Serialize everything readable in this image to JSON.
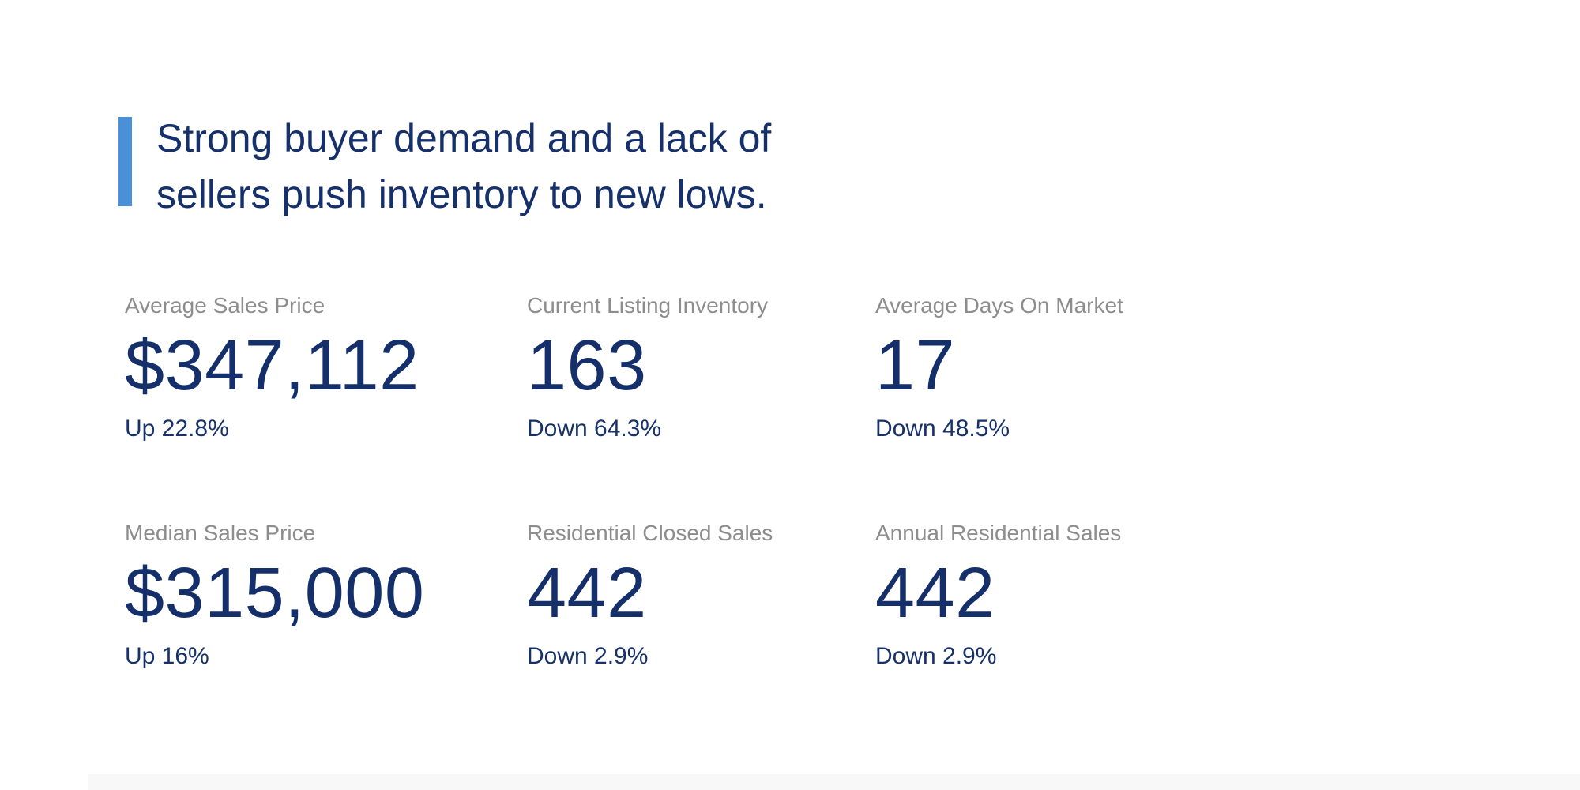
{
  "colors": {
    "accent_bar": "#4a90d9",
    "headline_navy": "#16306b",
    "value_navy": "#142f6a",
    "label_gray": "#8d8d8d",
    "background": "#ffffff"
  },
  "headline": {
    "line1": "Strong buyer demand and a lack of",
    "line2": "sellers push inventory to new lows."
  },
  "stats": [
    {
      "label": "Average Sales Price",
      "value": "$347,112",
      "change": "Up 22.8%"
    },
    {
      "label": "Current Listing Inventory",
      "value": "163",
      "change": "Down 64.3%"
    },
    {
      "label": "Average Days On Market",
      "value": "17",
      "change": "Down 48.5%"
    },
    {
      "label": "Median Sales Price",
      "value": "$315,000",
      "change": "Up 16%"
    },
    {
      "label": "Residential Closed Sales",
      "value": "442",
      "change": "Down 2.9%"
    },
    {
      "label": "Annual Residential Sales",
      "value": "442",
      "change": "Down 2.9%"
    }
  ]
}
